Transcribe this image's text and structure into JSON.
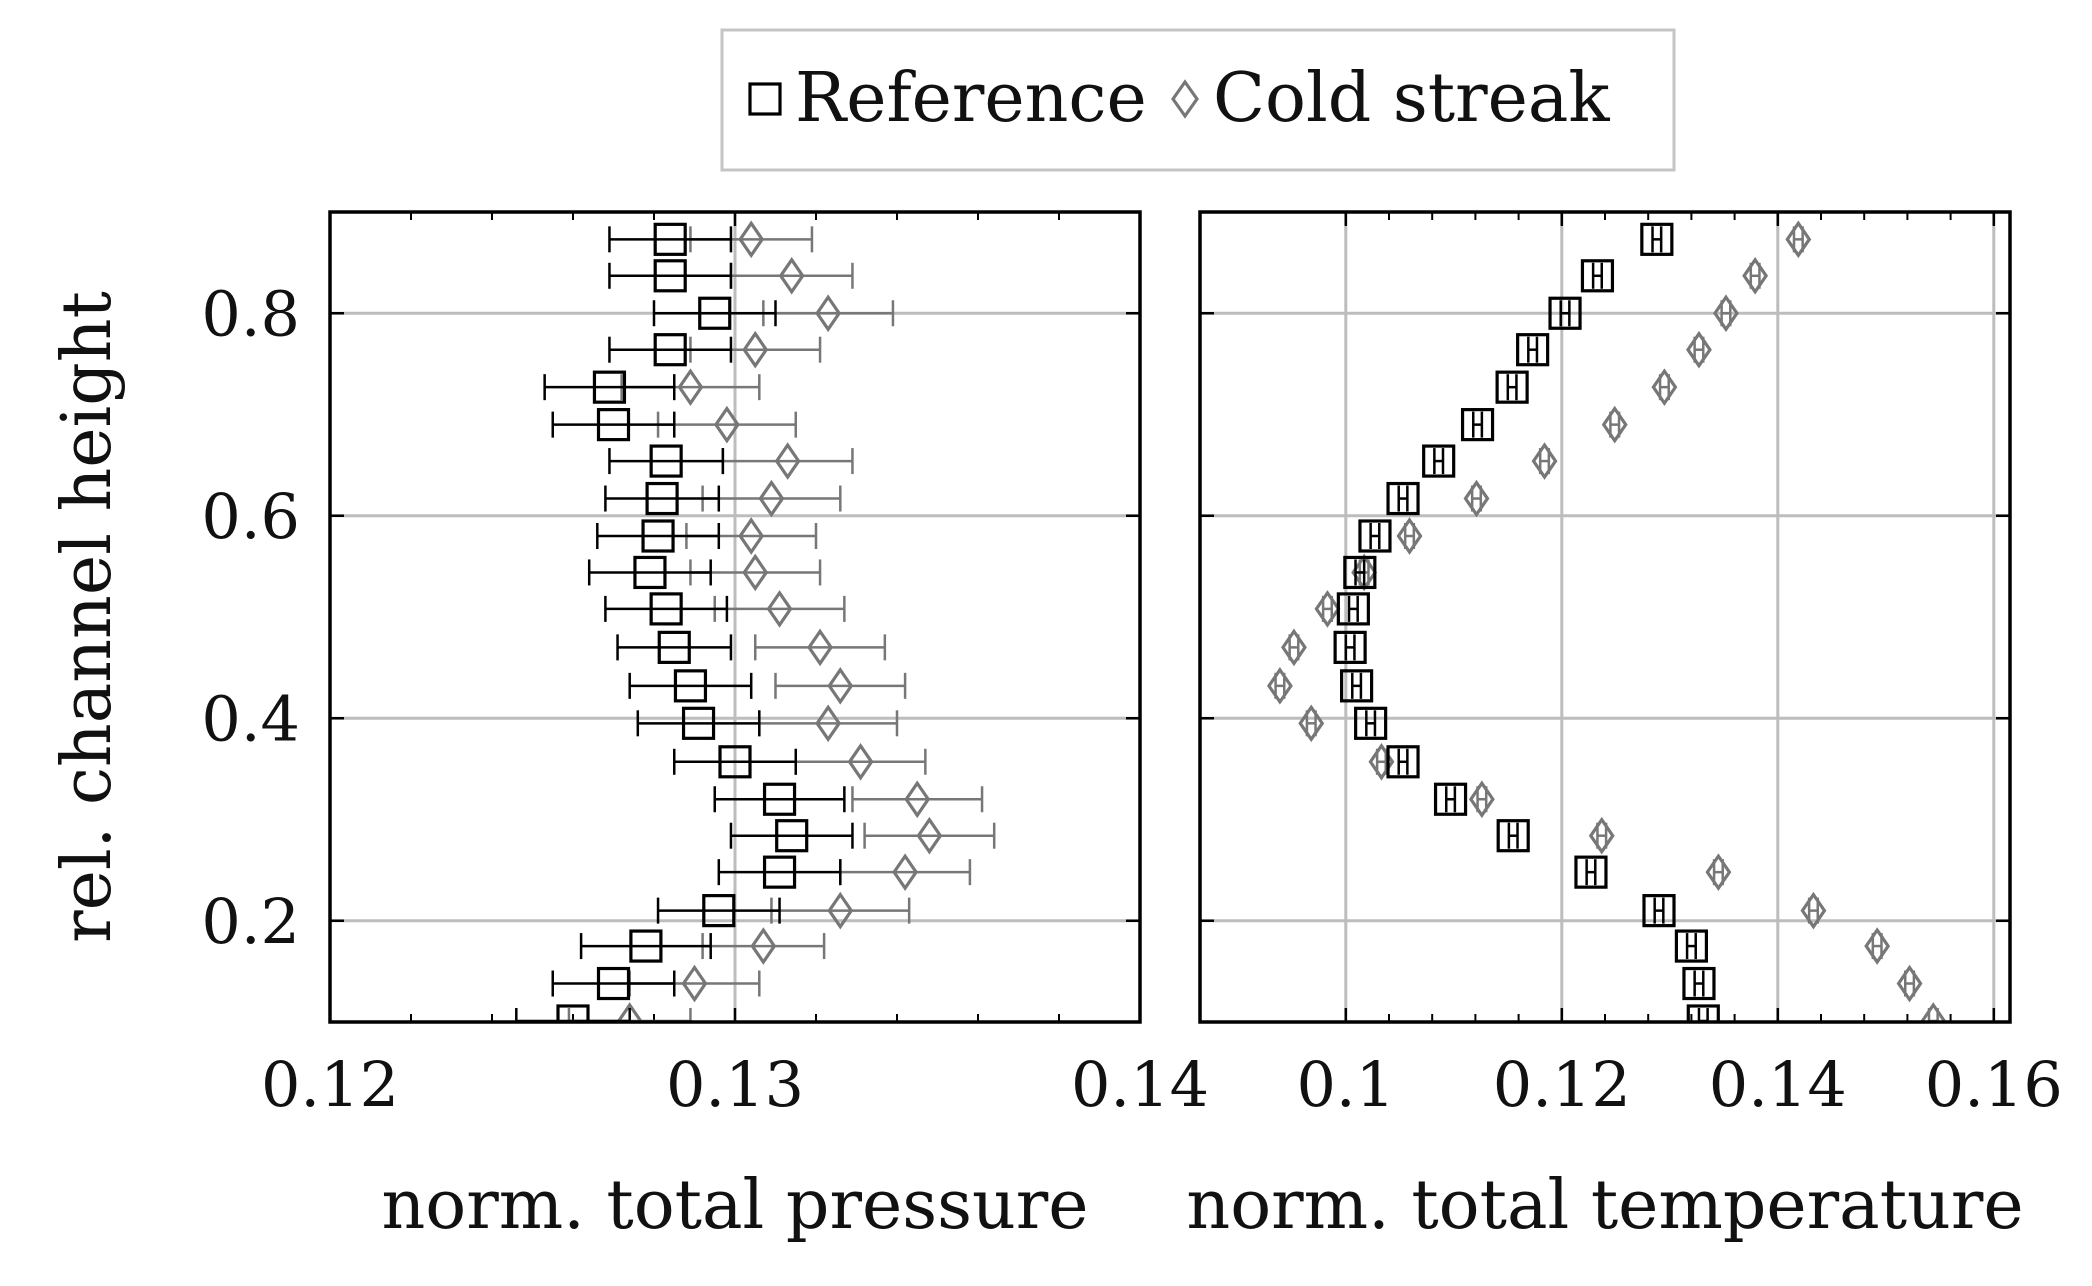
{
  "legend": {
    "entries": [
      {
        "label": "Reference",
        "marker": "square",
        "color": "#000000"
      },
      {
        "label": "Cold streak",
        "marker": "diamond",
        "color": "#777777"
      }
    ]
  },
  "colors": {
    "reference": "#000000",
    "cold": "#777777",
    "grid": "#bdbdbd"
  },
  "chart_data": [
    {
      "type": "scatter",
      "panel": "left",
      "xlabel": "norm. total pressure",
      "ylabel": "rel. channel height",
      "xlim": [
        0.12,
        0.14
      ],
      "ylim": [
        0.1,
        0.9
      ],
      "xticks": [
        0.12,
        0.13,
        0.14
      ],
      "xtick_labels": [
        "0.12",
        "0.13",
        "0.14"
      ],
      "yticks": [
        0.2,
        0.4,
        0.6,
        0.8
      ],
      "ytick_labels": [
        "0.2",
        "0.4",
        "0.6",
        "0.8"
      ],
      "grid": true,
      "series": [
        {
          "name": "Reference",
          "marker": "square",
          "points": [
            {
              "x": 0.1284,
              "y": 0.873,
              "err": 0.0015
            },
            {
              "x": 0.1284,
              "y": 0.837,
              "err": 0.0015
            },
            {
              "x": 0.1295,
              "y": 0.8,
              "err": 0.0015
            },
            {
              "x": 0.1284,
              "y": 0.764,
              "err": 0.0015
            },
            {
              "x": 0.1269,
              "y": 0.727,
              "err": 0.0016
            },
            {
              "x": 0.127,
              "y": 0.69,
              "err": 0.0015
            },
            {
              "x": 0.1283,
              "y": 0.654,
              "err": 0.0014
            },
            {
              "x": 0.1282,
              "y": 0.617,
              "err": 0.0014
            },
            {
              "x": 0.1281,
              "y": 0.58,
              "err": 0.0015
            },
            {
              "x": 0.1279,
              "y": 0.544,
              "err": 0.0015
            },
            {
              "x": 0.1283,
              "y": 0.508,
              "err": 0.0015
            },
            {
              "x": 0.1285,
              "y": 0.47,
              "err": 0.0014
            },
            {
              "x": 0.1289,
              "y": 0.432,
              "err": 0.0015
            },
            {
              "x": 0.1291,
              "y": 0.395,
              "err": 0.0015
            },
            {
              "x": 0.13,
              "y": 0.357,
              "err": 0.0015
            },
            {
              "x": 0.1311,
              "y": 0.32,
              "err": 0.0016
            },
            {
              "x": 0.1314,
              "y": 0.284,
              "err": 0.0015
            },
            {
              "x": 0.1311,
              "y": 0.248,
              "err": 0.0015
            },
            {
              "x": 0.1296,
              "y": 0.21,
              "err": 0.0015
            },
            {
              "x": 0.1278,
              "y": 0.175,
              "err": 0.0016
            },
            {
              "x": 0.127,
              "y": 0.138,
              "err": 0.0015
            },
            {
              "x": 0.126,
              "y": 0.101,
              "err": 0.0014
            }
          ]
        },
        {
          "name": "Cold streak",
          "marker": "diamond",
          "points": [
            {
              "x": 0.1304,
              "y": 0.873,
              "err": 0.0015
            },
            {
              "x": 0.1314,
              "y": 0.837,
              "err": 0.0015
            },
            {
              "x": 0.1323,
              "y": 0.8,
              "err": 0.0016
            },
            {
              "x": 0.1305,
              "y": 0.764,
              "err": 0.0016
            },
            {
              "x": 0.1289,
              "y": 0.727,
              "err": 0.0017
            },
            {
              "x": 0.1298,
              "y": 0.69,
              "err": 0.0017
            },
            {
              "x": 0.1313,
              "y": 0.654,
              "err": 0.0016
            },
            {
              "x": 0.1309,
              "y": 0.617,
              "err": 0.0017
            },
            {
              "x": 0.1304,
              "y": 0.58,
              "err": 0.0016
            },
            {
              "x": 0.1305,
              "y": 0.544,
              "err": 0.0016
            },
            {
              "x": 0.1311,
              "y": 0.508,
              "err": 0.0016
            },
            {
              "x": 0.1321,
              "y": 0.47,
              "err": 0.0016
            },
            {
              "x": 0.1326,
              "y": 0.432,
              "err": 0.0016
            },
            {
              "x": 0.1323,
              "y": 0.395,
              "err": 0.0017
            },
            {
              "x": 0.1331,
              "y": 0.357,
              "err": 0.0016
            },
            {
              "x": 0.1345,
              "y": 0.32,
              "err": 0.0016
            },
            {
              "x": 0.1348,
              "y": 0.284,
              "err": 0.0016
            },
            {
              "x": 0.1342,
              "y": 0.248,
              "err": 0.0016
            },
            {
              "x": 0.1326,
              "y": 0.21,
              "err": 0.0017
            },
            {
              "x": 0.1307,
              "y": 0.175,
              "err": 0.0015
            },
            {
              "x": 0.129,
              "y": 0.138,
              "err": 0.0016
            },
            {
              "x": 0.1274,
              "y": 0.101,
              "err": 0.0015
            }
          ]
        }
      ]
    },
    {
      "type": "scatter",
      "panel": "right",
      "xlabel": "norm. total temperature",
      "ylabel": "",
      "xlim": [
        0.0865,
        0.1615
      ],
      "ylim": [
        0.1,
        0.9
      ],
      "xticks": [
        0.1,
        0.12,
        0.14,
        0.16
      ],
      "xtick_labels": [
        "0.1",
        "0.12",
        "0.14",
        "0.16"
      ],
      "yticks": [
        0.2,
        0.4,
        0.6,
        0.8
      ],
      "ytick_labels": [],
      "grid": true,
      "series": [
        {
          "name": "Reference",
          "marker": "square",
          "points": [
            {
              "x": 0.1288,
              "y": 0.873,
              "err": 0.0004
            },
            {
              "x": 0.1233,
              "y": 0.837,
              "err": 0.0004
            },
            {
              "x": 0.1203,
              "y": 0.8,
              "err": 0.0004
            },
            {
              "x": 0.1173,
              "y": 0.764,
              "err": 0.0004
            },
            {
              "x": 0.1154,
              "y": 0.727,
              "err": 0.0004
            },
            {
              "x": 0.1122,
              "y": 0.69,
              "err": 0.0004
            },
            {
              "x": 0.1086,
              "y": 0.654,
              "err": 0.0004
            },
            {
              "x": 0.1053,
              "y": 0.617,
              "err": 0.0004
            },
            {
              "x": 0.1027,
              "y": 0.58,
              "err": 0.0004
            },
            {
              "x": 0.1013,
              "y": 0.544,
              "err": 0.0004
            },
            {
              "x": 0.1007,
              "y": 0.508,
              "err": 0.0004
            },
            {
              "x": 0.1004,
              "y": 0.47,
              "err": 0.0004
            },
            {
              "x": 0.101,
              "y": 0.432,
              "err": 0.0004
            },
            {
              "x": 0.1023,
              "y": 0.395,
              "err": 0.0004
            },
            {
              "x": 0.1053,
              "y": 0.357,
              "err": 0.0004
            },
            {
              "x": 0.1097,
              "y": 0.32,
              "err": 0.0004
            },
            {
              "x": 0.1155,
              "y": 0.284,
              "err": 0.0004
            },
            {
              "x": 0.1227,
              "y": 0.248,
              "err": 0.0004
            },
            {
              "x": 0.129,
              "y": 0.21,
              "err": 0.0004
            },
            {
              "x": 0.132,
              "y": 0.175,
              "err": 0.0004
            },
            {
              "x": 0.1327,
              "y": 0.138,
              "err": 0.0004
            },
            {
              "x": 0.1331,
              "y": 0.101,
              "err": 0.0004
            }
          ]
        },
        {
          "name": "Cold streak",
          "marker": "diamond",
          "points": [
            {
              "x": 0.1419,
              "y": 0.873,
              "err": 0.0004
            },
            {
              "x": 0.1379,
              "y": 0.837,
              "err": 0.0004
            },
            {
              "x": 0.1352,
              "y": 0.8,
              "err": 0.0004
            },
            {
              "x": 0.1327,
              "y": 0.764,
              "err": 0.0004
            },
            {
              "x": 0.1295,
              "y": 0.727,
              "err": 0.0004
            },
            {
              "x": 0.1249,
              "y": 0.69,
              "err": 0.0004
            },
            {
              "x": 0.1184,
              "y": 0.654,
              "err": 0.0004
            },
            {
              "x": 0.1121,
              "y": 0.617,
              "err": 0.0004
            },
            {
              "x": 0.1059,
              "y": 0.58,
              "err": 0.0004
            },
            {
              "x": 0.1017,
              "y": 0.544,
              "err": 0.0004
            },
            {
              "x": 0.0983,
              "y": 0.508,
              "err": 0.0004
            },
            {
              "x": 0.0952,
              "y": 0.47,
              "err": 0.0004
            },
            {
              "x": 0.0939,
              "y": 0.432,
              "err": 0.0004
            },
            {
              "x": 0.0968,
              "y": 0.395,
              "err": 0.0004
            },
            {
              "x": 0.1033,
              "y": 0.357,
              "err": 0.0004
            },
            {
              "x": 0.1126,
              "y": 0.32,
              "err": 0.0004
            },
            {
              "x": 0.1237,
              "y": 0.284,
              "err": 0.0004
            },
            {
              "x": 0.1345,
              "y": 0.248,
              "err": 0.0004
            },
            {
              "x": 0.1433,
              "y": 0.21,
              "err": 0.0004
            },
            {
              "x": 0.1492,
              "y": 0.175,
              "err": 0.0004
            },
            {
              "x": 0.1522,
              "y": 0.138,
              "err": 0.0004
            },
            {
              "x": 0.1544,
              "y": 0.101,
              "err": 0.0004
            }
          ]
        }
      ]
    }
  ]
}
